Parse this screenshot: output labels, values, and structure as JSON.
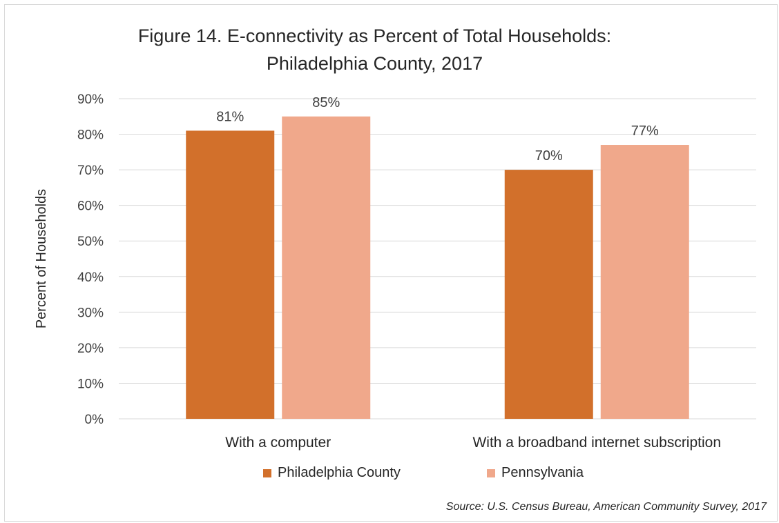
{
  "chart_data": {
    "type": "bar",
    "title": "Figure 14. E-connectivity as Percent of Total Households:",
    "subtitle": "Philadelphia County, 2017",
    "xlabel": "",
    "ylabel": "Percent of Households",
    "categories": [
      "With a computer",
      "With a broadband internet subscription"
    ],
    "series": [
      {
        "name": "Philadelphia County",
        "color": "#d2702b",
        "values": [
          81,
          70
        ],
        "labels": [
          "81%",
          "70%"
        ]
      },
      {
        "name": "Pennsylvania",
        "color": "#f0a88b",
        "values": [
          85,
          77
        ],
        "labels": [
          "85%",
          "77%"
        ]
      }
    ],
    "ylim": [
      0,
      90
    ],
    "yticks": [
      0,
      10,
      20,
      30,
      40,
      50,
      60,
      70,
      80,
      90
    ],
    "ytick_labels": [
      "0%",
      "10%",
      "20%",
      "30%",
      "40%",
      "50%",
      "60%",
      "70%",
      "80%",
      "90%"
    ],
    "grid": true,
    "legend_position": "bottom",
    "source": "Source: U.S. Census Bureau, American Community Survey, 2017"
  }
}
